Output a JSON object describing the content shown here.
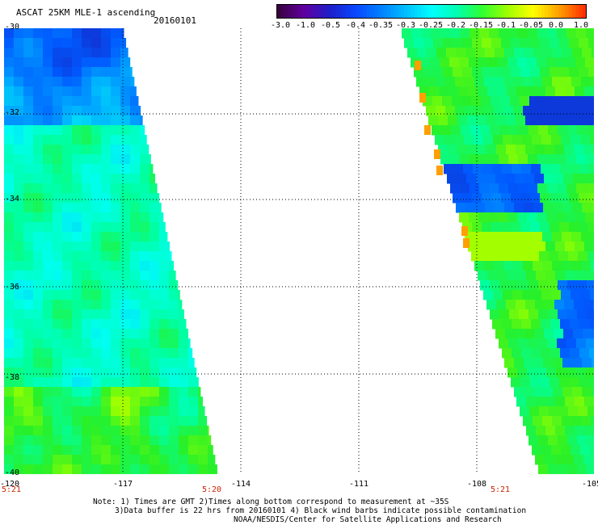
{
  "header": {
    "title": "ASCAT 25KM MLE-1 ascending",
    "date": "20160101"
  },
  "colorbar": {
    "labels": [
      "-3.0",
      "-1.0",
      "-0.5",
      "-0.4",
      "-0.35",
      "-0.3",
      "-0.25",
      "-0.2",
      "-0.15",
      "-0.1",
      "-0.05",
      "0.0",
      "1.0"
    ],
    "colors": [
      "#3a0040",
      "#6000a0",
      "#1f1fc8",
      "#0a46ff",
      "#007fff",
      "#00bfff",
      "#00ffff",
      "#00ffb0",
      "#30ff30",
      "#a0ff00",
      "#ffff00",
      "#ffa000",
      "#ff3000"
    ]
  },
  "axes": {
    "y_labels": [
      "-30",
      "-32",
      "-34",
      "-36",
      "-38",
      "-40"
    ],
    "x_labels": [
      "-120",
      "-117",
      "-114",
      "-111",
      "-108",
      "-105"
    ],
    "time_labels": [
      "5:21",
      "5:20",
      "5:21"
    ]
  },
  "notes": {
    "line1": "Note: 1) Times are GMT 2)Times along bottom correspond to measurement at ~35S",
    "line2": "3)Data buffer is 22 hrs from 20160101 4) Black wind barbs indicate possible contamination",
    "line3": "NOAA/NESDIS/Center for Satellite Applications and Research"
  }
}
